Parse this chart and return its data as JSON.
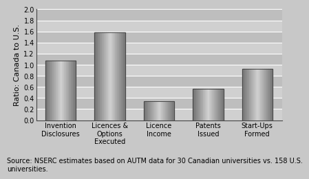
{
  "categories": [
    "Invention\nDisclosures",
    "Licences &\nOptions\nExecuted",
    "Licence\nIncome",
    "Patents\nIssued",
    "Start-Ups\nFormed"
  ],
  "values": [
    1.08,
    1.58,
    0.34,
    0.57,
    0.93
  ],
  "bar_color_light": "#c8c8c8",
  "bar_color_dark": "#707070",
  "bar_edge_color": "#444444",
  "ylim": [
    0.0,
    2.0
  ],
  "yticks": [
    0.0,
    0.2,
    0.4,
    0.6,
    0.8,
    1.0,
    1.2,
    1.4,
    1.6,
    1.8,
    2.0
  ],
  "ylabel": "Ratio: Canada to U.S.",
  "outer_bg_color": "#c8c8c8",
  "band_colors": [
    "#d0d0d0",
    "#bebebe"
  ],
  "source_text": "Source: NSERC estimates based on AUTM data for 30 Canadian universities vs. 158 U.S.\nuniversities.",
  "ylabel_fontsize": 8,
  "tick_fontsize": 7,
  "source_fontsize": 7,
  "bar_width": 0.62
}
